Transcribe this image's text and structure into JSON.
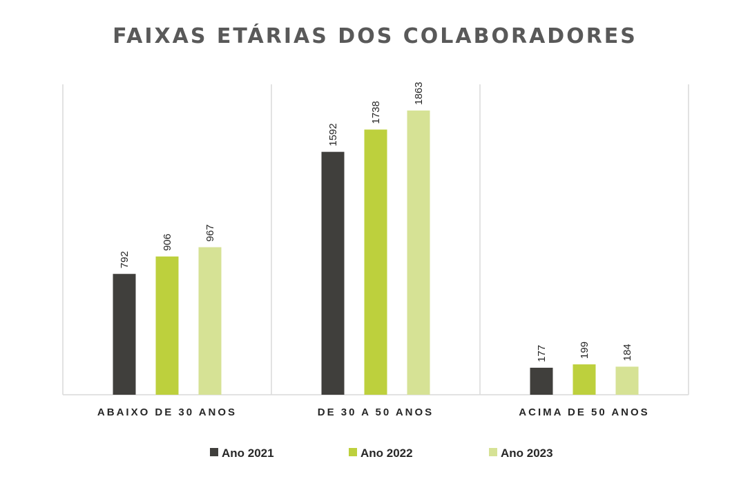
{
  "chart_data": {
    "type": "bar",
    "title": "FAIXAS ETÁRIAS DOS COLABORADORES",
    "categories": [
      "ABAIXO DE 30 ANOS",
      "DE 30 A 50 ANOS",
      "ACIMA DE 50 ANOS"
    ],
    "series": [
      {
        "name": "Ano 2021",
        "color": "#403F3C",
        "values": [
          792,
          1592,
          177
        ]
      },
      {
        "name": "Ano 2022",
        "color": "#BDD03D",
        "values": [
          906,
          1738,
          199
        ]
      },
      {
        "name": "Ano 2023",
        "color": "#D6E295",
        "values": [
          967,
          1863,
          184
        ]
      }
    ],
    "ylim": [
      0,
      2000
    ],
    "xlabel": "",
    "ylabel": "",
    "grid": "vertical category separators",
    "legend_position": "bottom",
    "data_labels": true
  }
}
